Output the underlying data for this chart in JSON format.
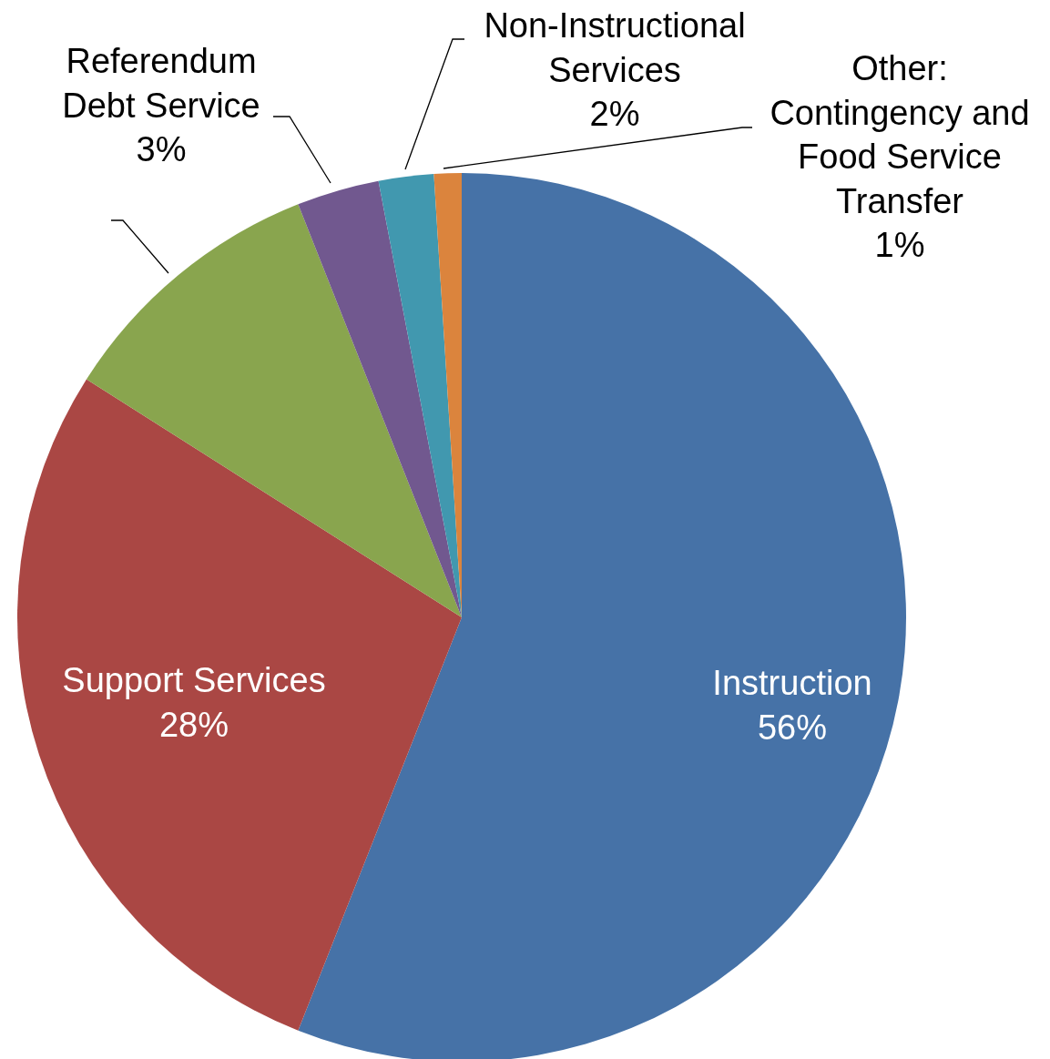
{
  "chart_data": {
    "type": "pie",
    "categories": [
      "Instruction",
      "Support Services",
      null,
      "Referendum Debt Service",
      "Non-Instructional Services",
      "Other: Contingency and Food Service Transfer"
    ],
    "values": [
      56,
      28,
      10,
      3,
      2,
      1
    ],
    "value_labels": [
      "56%",
      "28%",
      null,
      "3%",
      "2%",
      "1%"
    ],
    "colors": [
      "#4672a7",
      "#aa4744",
      "#89a54e",
      "#71588f",
      "#4198af",
      "#db843d"
    ],
    "legend": false
  }
}
